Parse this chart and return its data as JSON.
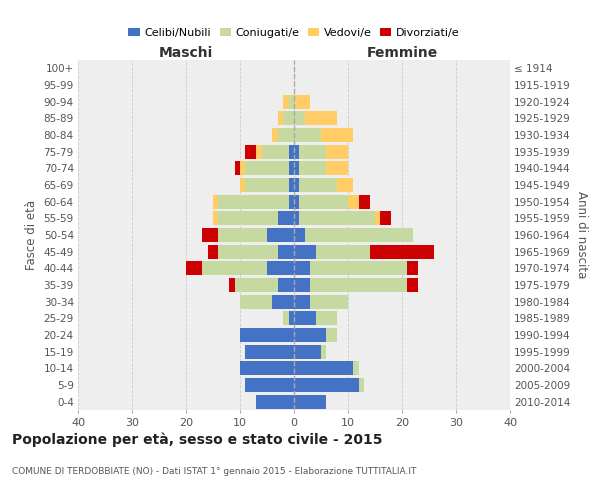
{
  "age_groups": [
    "100+",
    "95-99",
    "90-94",
    "85-89",
    "80-84",
    "75-79",
    "70-74",
    "65-69",
    "60-64",
    "55-59",
    "50-54",
    "45-49",
    "40-44",
    "35-39",
    "30-34",
    "25-29",
    "20-24",
    "15-19",
    "10-14",
    "5-9",
    "0-4"
  ],
  "birth_years": [
    "≤ 1914",
    "1915-1919",
    "1920-1924",
    "1925-1929",
    "1930-1934",
    "1935-1939",
    "1940-1944",
    "1945-1949",
    "1950-1954",
    "1955-1959",
    "1960-1964",
    "1965-1969",
    "1970-1974",
    "1975-1979",
    "1980-1984",
    "1985-1989",
    "1990-1994",
    "1995-1999",
    "2000-2004",
    "2005-2009",
    "2010-2014"
  ],
  "males": {
    "celibe": [
      0,
      0,
      0,
      0,
      0,
      1,
      1,
      1,
      1,
      3,
      5,
      3,
      5,
      3,
      4,
      1,
      10,
      9,
      10,
      9,
      7
    ],
    "coniugato": [
      0,
      0,
      1,
      2,
      3,
      5,
      8,
      8,
      13,
      11,
      9,
      11,
      12,
      8,
      6,
      1,
      0,
      0,
      0,
      0,
      0
    ],
    "vedovo": [
      0,
      0,
      1,
      1,
      1,
      1,
      1,
      1,
      1,
      1,
      0,
      0,
      0,
      0,
      0,
      0,
      0,
      0,
      0,
      0,
      0
    ],
    "divorziato": [
      0,
      0,
      0,
      0,
      0,
      2,
      1,
      0,
      0,
      0,
      3,
      2,
      3,
      1,
      0,
      0,
      0,
      0,
      0,
      0,
      0
    ]
  },
  "females": {
    "nubile": [
      0,
      0,
      0,
      0,
      0,
      1,
      1,
      1,
      1,
      1,
      2,
      4,
      3,
      3,
      3,
      4,
      6,
      5,
      11,
      12,
      6
    ],
    "coniugata": [
      0,
      0,
      0,
      2,
      5,
      5,
      5,
      7,
      9,
      14,
      20,
      10,
      18,
      18,
      7,
      4,
      2,
      1,
      1,
      1,
      0
    ],
    "vedova": [
      0,
      0,
      3,
      6,
      6,
      4,
      4,
      3,
      2,
      1,
      0,
      0,
      0,
      0,
      0,
      0,
      0,
      0,
      0,
      0,
      0
    ],
    "divorziata": [
      0,
      0,
      0,
      0,
      0,
      0,
      0,
      0,
      2,
      2,
      0,
      12,
      2,
      2,
      0,
      0,
      0,
      0,
      0,
      0,
      0
    ]
  },
  "color_celibe": "#4472C4",
  "color_coniugato": "#C5D9A0",
  "color_vedovo": "#FFCC66",
  "color_divorziato": "#CC0000",
  "title": "Popolazione per età, sesso e stato civile - 2015",
  "subtitle": "COMUNE DI TERDOBBIATE (NO) - Dati ISTAT 1° gennaio 2015 - Elaborazione TUTTITALIA.IT",
  "label_maschi": "Maschi",
  "label_femmine": "Femmine",
  "ylabel_left": "Fasce di età",
  "ylabel_right": "Anni di nascita",
  "legend_labels": [
    "Celibi/Nubili",
    "Coniugati/e",
    "Vedovi/e",
    "Divorziati/e"
  ],
  "xlim": 40,
  "xticks": [
    40,
    30,
    20,
    10,
    0,
    10,
    20,
    30,
    40
  ]
}
